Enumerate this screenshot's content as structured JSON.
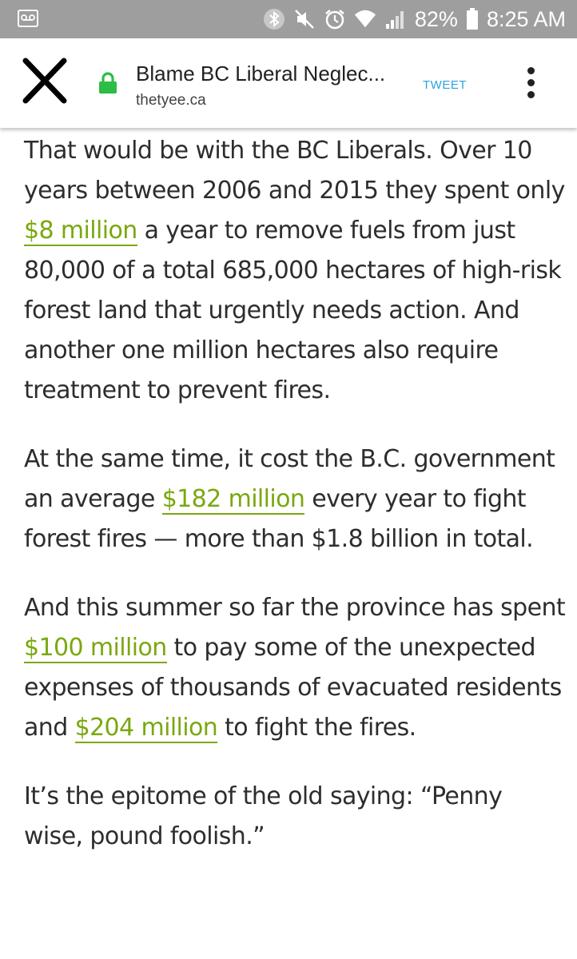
{
  "status_bar": {
    "battery": "82%",
    "time": "8:25 AM"
  },
  "toolbar": {
    "title": "Blame BC Liberal Neglec...",
    "url": "thetyee.ca",
    "tweet_label": "TWEET"
  },
  "article": {
    "p1": {
      "t1": "That would be with the BC Liberals. Over 10 years between 2006 and 2015 they spent only ",
      "link1": "$8 million",
      "t2": " a year to remove fuels from just 80,000 of a total 685,000 hectares of high-risk forest land that urgently needs action. And another one million hectares also require treatment to prevent fires."
    },
    "p2": {
      "t1": "At the same time, it cost the B.C. government an average ",
      "link1": "$182 million",
      "t2": " every year to fight forest fires — more than $1.8 billion in total."
    },
    "p3": {
      "t1": "And this summer so far the province has spent ",
      "link1": "$100 million",
      "t2": " to pay some of the unexpected expenses of thousands of evacuated residents and ",
      "link2": "$204 million",
      "t3": " to fight the fires."
    },
    "p4": {
      "t1": "It’s the epitome of the old saying: “Penny wise, pound foolish.”"
    }
  },
  "colors": {
    "status_bar_bg": "#9e9e9e",
    "link": "#7aa80f",
    "tweet": "#29a3e0",
    "lock": "#2bbd45"
  },
  "icons": [
    "voicemail-icon",
    "bluetooth-icon",
    "mute-icon",
    "alarm-icon",
    "wifi-icon",
    "signal-icon",
    "battery-icon",
    "close-icon",
    "lock-icon",
    "more-vert-icon"
  ]
}
